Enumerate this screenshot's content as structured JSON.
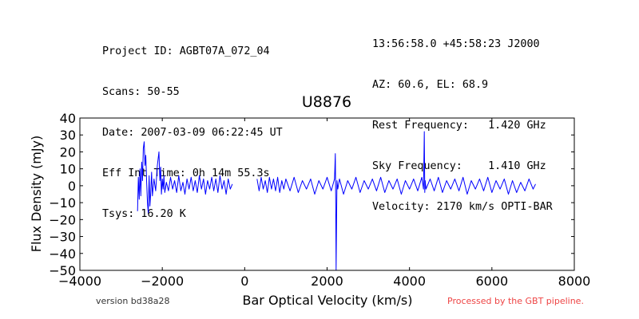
{
  "header": {
    "left_lines": [
      "Project ID: AGBT07A_072_04",
      "Scans: 50-55",
      "Date: 2007-03-09 06:22:45 UT",
      "Eff Int Time: 0h 14m 55.3s",
      "Tsys: 16.20 K"
    ],
    "right_lines": [
      "13:56:58.0 +45:58:23 J2000",
      "AZ: 60.6, EL: 68.9",
      "Rest Frequency:   1.420 GHz",
      "Sky Frequency:    1.410 GHz",
      "Velocity: 2170 km/s OPTI-BAR"
    ]
  },
  "footer": {
    "version": "version bd38a28",
    "processed": "Processed by the GBT pipeline."
  },
  "colors": {
    "series": "#0000ff",
    "footer_processed": "#ee4444"
  },
  "chart_data": {
    "type": "line",
    "title": "U8876",
    "xlabel": "Bar Optical Velocity (km/s)",
    "ylabel": "Flux Density (mJy)",
    "xlim": [
      -4000,
      8000
    ],
    "ylim": [
      -50,
      40
    ],
    "xticks": [
      -4000,
      -2000,
      0,
      2000,
      4000,
      6000,
      8000
    ],
    "xtick_labels": [
      "−4000",
      "−2000",
      "0",
      "2000",
      "4000",
      "6000",
      "8000"
    ],
    "yticks": [
      40,
      30,
      20,
      10,
      0,
      -10,
      -20,
      -30,
      -40,
      -50
    ],
    "ytick_labels": [
      "40",
      "30",
      "20",
      "10",
      "0",
      "−10",
      "−20",
      "−30",
      "−40",
      "−50"
    ],
    "grid": false,
    "series": [
      {
        "x": [
          -2600,
          -2580,
          -2560,
          -2540,
          -2520,
          -2500,
          -2480,
          -2460,
          -2440,
          -2420,
          -2400,
          -2380,
          -2360,
          -2340,
          -2320,
          -2300,
          -2280,
          -2260,
          -2240,
          -2200,
          -2160,
          -2120,
          -2080,
          -2060,
          -2040,
          -2020,
          -2000,
          -1980,
          -1960,
          -1940,
          -1900,
          -1850,
          -1800,
          -1750,
          -1700,
          -1650,
          -1600,
          -1550,
          -1500,
          -1450,
          -1400,
          -1350,
          -1300,
          -1250,
          -1200,
          -1150,
          -1100,
          -1050,
          -1000,
          -950,
          -900,
          -850,
          -800,
          -750,
          -700,
          -650,
          -600,
          -550,
          -500,
          -450,
          -400,
          -350,
          -300,
          null,
          300,
          350,
          400,
          450,
          500,
          550,
          600,
          650,
          700,
          750,
          800,
          850,
          900,
          950,
          1000,
          1100,
          1200,
          1300,
          1400,
          1500,
          1600,
          1700,
          1800,
          1900,
          2000,
          2100,
          2180,
          2200,
          2210,
          2220,
          2230,
          2240,
          2260,
          2300,
          2400,
          2500,
          2600,
          2700,
          2800,
          2900,
          3000,
          3100,
          3200,
          3300,
          3400,
          3500,
          3600,
          3700,
          3800,
          3900,
          4000,
          4100,
          4200,
          4300,
          4340,
          4360,
          4370,
          4380,
          4400,
          4500,
          4600,
          4700,
          4800,
          4900,
          5000,
          5100,
          5200,
          5300,
          5400,
          5500,
          5600,
          5700,
          5800,
          5900,
          6000,
          6100,
          6200,
          6300,
          6400,
          6500,
          6600,
          6700,
          6800,
          6900,
          7000,
          7060
        ],
        "y": [
          -15,
          5,
          -8,
          10,
          -6,
          14,
          3,
          22,
          26,
          12,
          18,
          2,
          -10,
          -16,
          6,
          -12,
          -4,
          8,
          -6,
          4,
          -3,
          12,
          20,
          3,
          11,
          -5,
          4,
          -2,
          6,
          -4,
          2,
          -3,
          5,
          -2,
          3,
          -4,
          6,
          -3,
          2,
          -5,
          4,
          -2,
          5,
          -3,
          3,
          -4,
          6,
          -2,
          4,
          -5,
          3,
          -2,
          5,
          -3,
          4,
          -4,
          6,
          -2,
          3,
          -5,
          4,
          -2,
          1,
          null,
          4,
          -3,
          5,
          -2,
          3,
          -4,
          5,
          -2,
          4,
          -3,
          5,
          -4,
          3,
          -2,
          4,
          -3,
          5,
          -4,
          3,
          -2,
          4,
          -5,
          3,
          -2,
          5,
          -3,
          4,
          19,
          -8,
          -50,
          -18,
          3,
          -2,
          4,
          -5,
          3,
          -2,
          5,
          -4,
          3,
          -2,
          4,
          -3,
          5,
          -4,
          3,
          -2,
          4,
          -5,
          3,
          -2,
          4,
          -3,
          5,
          -2,
          32,
          -4,
          3,
          -2,
          4,
          -3,
          5,
          -4,
          3,
          -2,
          4,
          -3,
          5,
          -5,
          3,
          -2,
          4,
          -3,
          5,
          -4,
          3,
          -2,
          4,
          -5,
          3,
          -4,
          2,
          -3,
          4,
          -2,
          1
        ]
      }
    ]
  }
}
